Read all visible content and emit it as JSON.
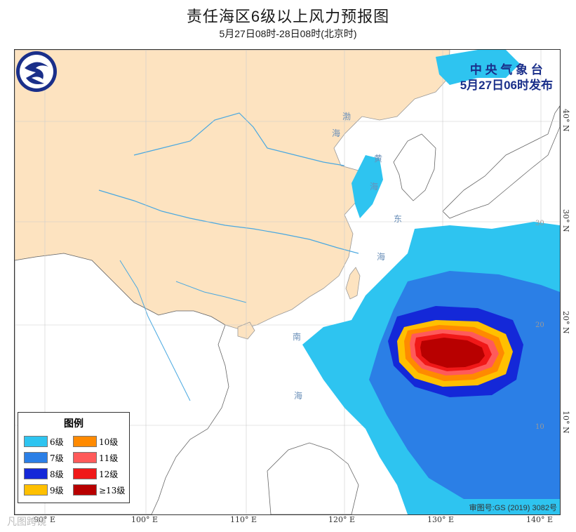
{
  "title": "责任海区6级以上风力预报图",
  "subtitle": "5月27日08时-28日08时(北京时)",
  "issuer": {
    "line1": "中 央 气 象 台",
    "line2": "5月27日06时发布"
  },
  "legend": {
    "title": "图例",
    "items": [
      {
        "label": "6级",
        "color": "#2ec4f0"
      },
      {
        "label": "10级",
        "color": "#ff8a00"
      },
      {
        "label": "7级",
        "color": "#2b7fe6"
      },
      {
        "label": "11级",
        "color": "#ff5a5a"
      },
      {
        "label": "8级",
        "color": "#1428d8"
      },
      {
        "label": "12级",
        "color": "#f01818"
      },
      {
        "label": "9级",
        "color": "#ffc000"
      },
      {
        "label": "≥13级",
        "color": "#b80000"
      }
    ]
  },
  "approval": "审图号:GS (2019) 3082号",
  "lon_labels": [
    "90° E",
    "100° E",
    "110° E",
    "120° E",
    "130° E",
    "140° E"
  ],
  "lat_labels": [
    "10° N",
    "20° N",
    "30° N",
    "40° N"
  ],
  "sea_labels": [
    "渤",
    "海",
    "黄",
    "海",
    "东",
    "海",
    "南",
    "海"
  ],
  "watermark": "凡图跨镜",
  "colors": {
    "land": "#fde3c0",
    "water": "#ffffff",
    "river": "#4aa8e0",
    "border": "#888888"
  }
}
